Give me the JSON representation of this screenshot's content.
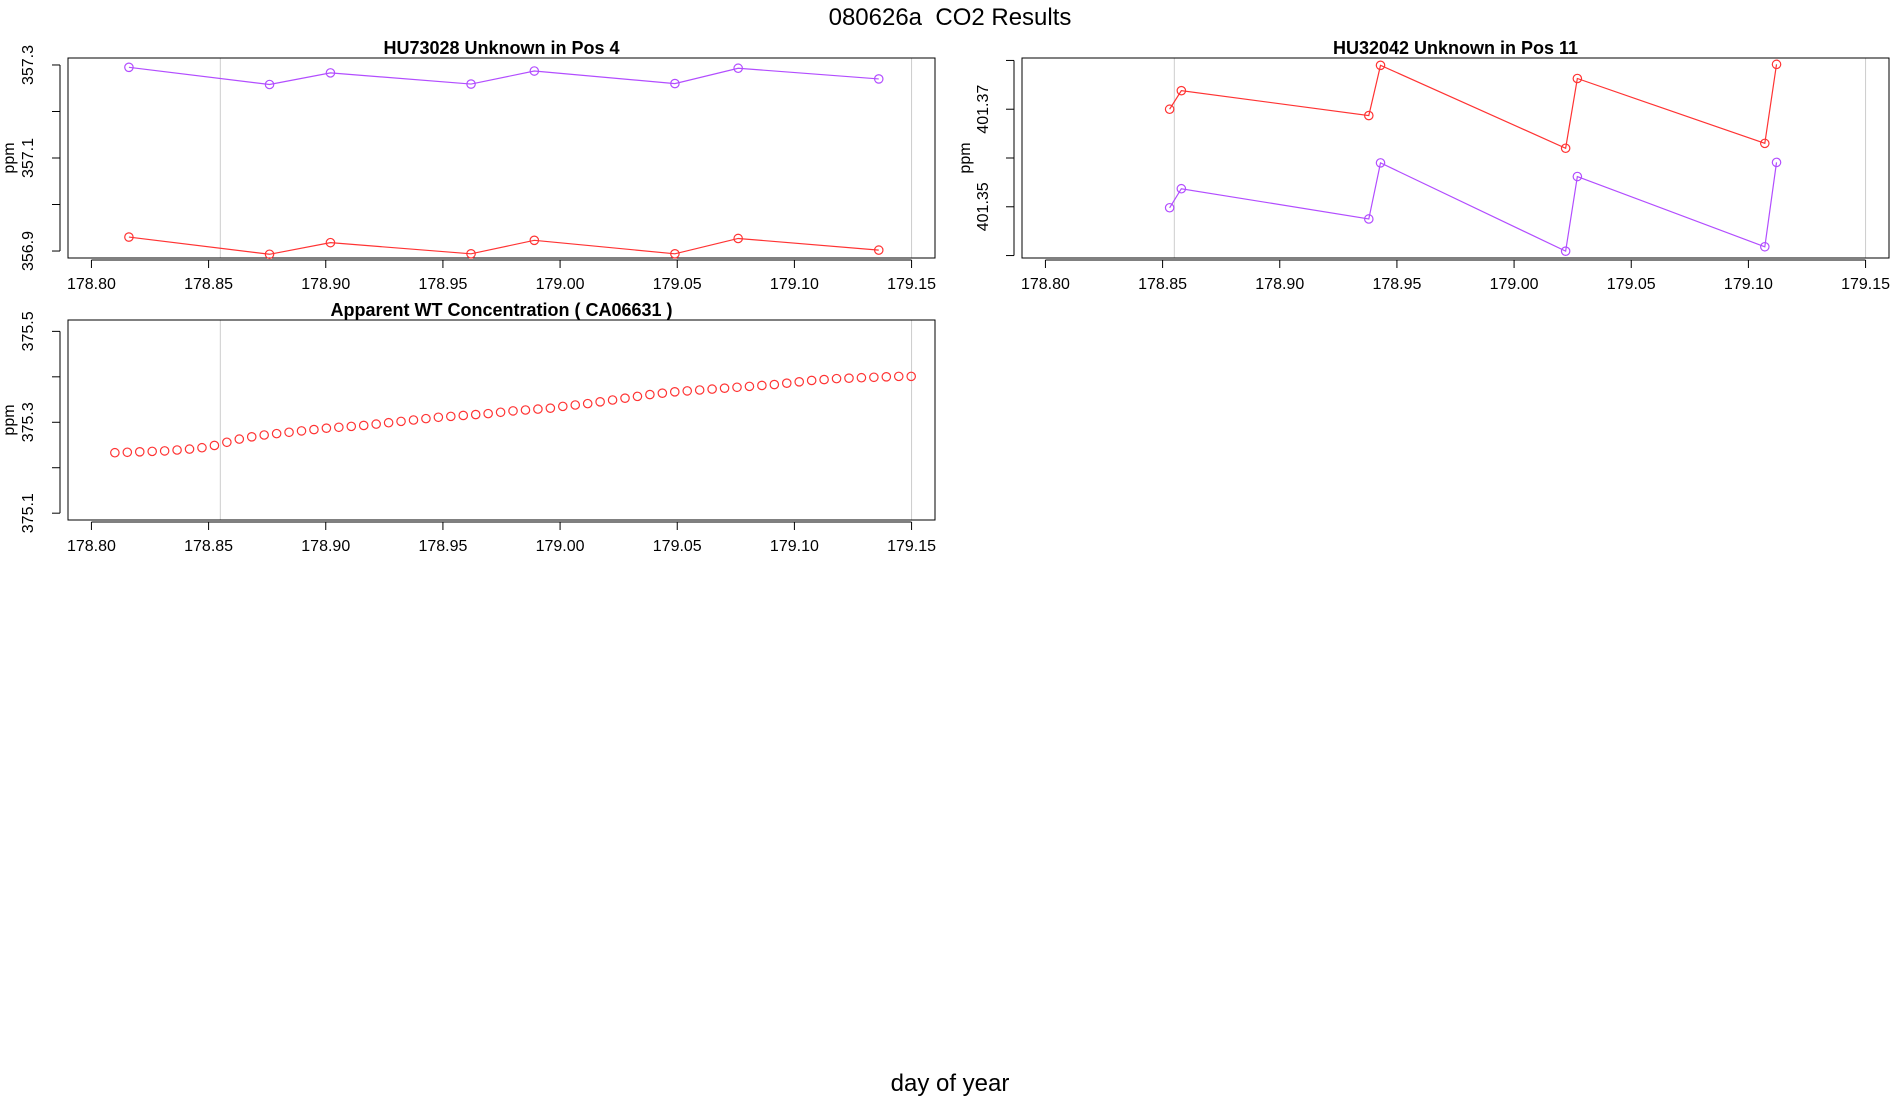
{
  "page_title": "080626a  CO2 Results",
  "xlabel": "day of year",
  "colors": {
    "red": "#ff3333",
    "purple": "#b24dff",
    "grid": "#cccccc",
    "axis": "#000000"
  },
  "chart_data": [
    {
      "type": "line",
      "title": "HU73028    Unknown in Pos 4",
      "ylabel": "ppm",
      "xlim": [
        178.79,
        179.16
      ],
      "ylim": [
        356.885,
        357.315
      ],
      "xticks": [
        178.8,
        178.85,
        178.9,
        178.95,
        179.0,
        179.05,
        179.1,
        179.15
      ],
      "xtick_labels": [
        "178.80",
        "178.85",
        "178.90",
        "178.95",
        "179.00",
        "179.05",
        "179.10",
        "179.15"
      ],
      "yticks": [
        356.9,
        357.0,
        357.1,
        357.2,
        357.3
      ],
      "ytick_labels": [
        "356.9",
        "",
        "357.1",
        "",
        "357.3"
      ],
      "vlines": [
        178.855,
        179.15
      ],
      "series": [
        {
          "name": "purple",
          "color": "#b24dff",
          "x": [
            178.816,
            178.876,
            178.902,
            178.962,
            178.989,
            179.049,
            179.076,
            179.136
          ],
          "y": [
            357.295,
            357.258,
            357.283,
            357.259,
            357.287,
            357.26,
            357.293,
            357.27
          ]
        },
        {
          "name": "red",
          "color": "#ff3333",
          "x": [
            178.816,
            178.876,
            178.902,
            178.962,
            178.989,
            179.049,
            179.076,
            179.136
          ],
          "y": [
            356.93,
            356.893,
            356.918,
            356.894,
            356.923,
            356.894,
            356.927,
            356.902
          ]
        }
      ]
    },
    {
      "type": "line",
      "title": "HU32042    Unknown in Pos 11",
      "ylabel": "ppm",
      "xlim": [
        178.79,
        179.16
      ],
      "ylim": [
        401.3395,
        401.3805
      ],
      "xticks": [
        178.8,
        178.85,
        178.9,
        178.95,
        179.0,
        179.05,
        179.1,
        179.15
      ],
      "xtick_labels": [
        "178.80",
        "178.85",
        "178.90",
        "178.95",
        "179.00",
        "179.05",
        "179.10",
        "179.15"
      ],
      "yticks": [
        401.34,
        401.35,
        401.36,
        401.37,
        401.38
      ],
      "ytick_labels": [
        "",
        "401.35",
        "",
        "401.37",
        ""
      ],
      "vlines": [
        178.855,
        179.15
      ],
      "series": [
        {
          "name": "red",
          "color": "#ff3333",
          "x": [
            178.853,
            178.858,
            178.938,
            178.943,
            179.022,
            179.027,
            179.107,
            179.112
          ],
          "y": [
            401.37,
            401.3738,
            401.3687,
            401.379,
            401.362,
            401.3763,
            401.363,
            401.3792
          ]
        },
        {
          "name": "purple",
          "color": "#b24dff",
          "x": [
            178.853,
            178.858,
            178.938,
            178.943,
            179.022,
            179.027,
            179.107,
            179.112
          ],
          "y": [
            401.3498,
            401.3537,
            401.3475,
            401.359,
            401.3409,
            401.3562,
            401.3418,
            401.3591
          ]
        }
      ]
    },
    {
      "type": "scatter",
      "title": "Apparent WT Concentration ( CA06631 )",
      "ylabel": "ppm",
      "xlim": [
        178.79,
        179.16
      ],
      "ylim": [
        375.085,
        375.525
      ],
      "xticks": [
        178.8,
        178.85,
        178.9,
        178.95,
        179.0,
        179.05,
        179.1,
        179.15
      ],
      "xtick_labels": [
        "178.80",
        "178.85",
        "178.90",
        "178.95",
        "179.00",
        "179.05",
        "179.10",
        "179.15"
      ],
      "yticks": [
        375.1,
        375.2,
        375.3,
        375.4,
        375.5
      ],
      "ytick_labels": [
        "375.1",
        "",
        "375.3",
        "",
        "375.5"
      ],
      "vlines": [
        178.855,
        179.15
      ],
      "series": [
        {
          "name": "red",
          "color": "#ff3333",
          "x_start": 178.81,
          "x_step": 0.00531,
          "y": [
            375.233,
            375.234,
            375.235,
            375.236,
            375.237,
            375.239,
            375.241,
            375.244,
            375.249,
            375.256,
            375.263,
            375.268,
            375.272,
            375.275,
            375.278,
            375.281,
            375.284,
            375.287,
            375.289,
            375.291,
            375.293,
            375.296,
            375.299,
            375.302,
            375.305,
            375.308,
            375.311,
            375.313,
            375.315,
            375.317,
            375.319,
            375.322,
            375.325,
            375.327,
            375.329,
            375.331,
            375.335,
            375.338,
            375.341,
            375.345,
            375.349,
            375.353,
            375.357,
            375.361,
            375.364,
            375.367,
            375.369,
            375.371,
            375.373,
            375.375,
            375.377,
            375.379,
            375.381,
            375.383,
            375.386,
            375.389,
            375.392,
            375.394,
            375.396,
            375.397,
            375.398,
            375.399,
            375.4,
            375.401,
            375.401
          ]
        }
      ]
    }
  ]
}
